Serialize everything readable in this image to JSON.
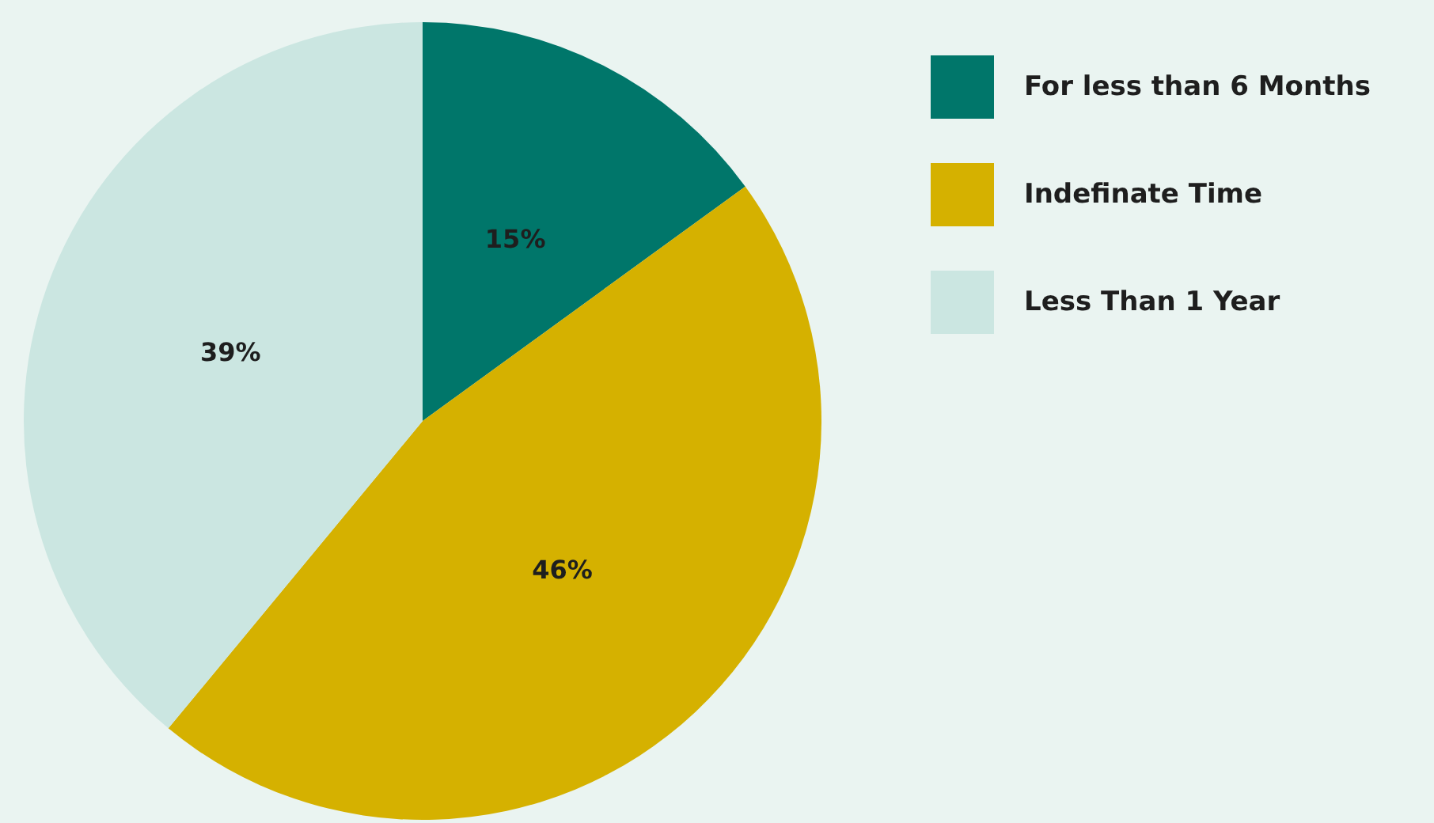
{
  "chart_data": {
    "type": "pie",
    "categories": [
      "For less than 6 Months",
      "Indefinate Time",
      "Less Than 1 Year"
    ],
    "values": [
      15,
      46,
      39
    ],
    "colors": [
      "#00766a",
      "#d5b100",
      "#cbe6e1"
    ],
    "value_labels": [
      "15%",
      "46%",
      "39%"
    ],
    "legend": "top right"
  }
}
